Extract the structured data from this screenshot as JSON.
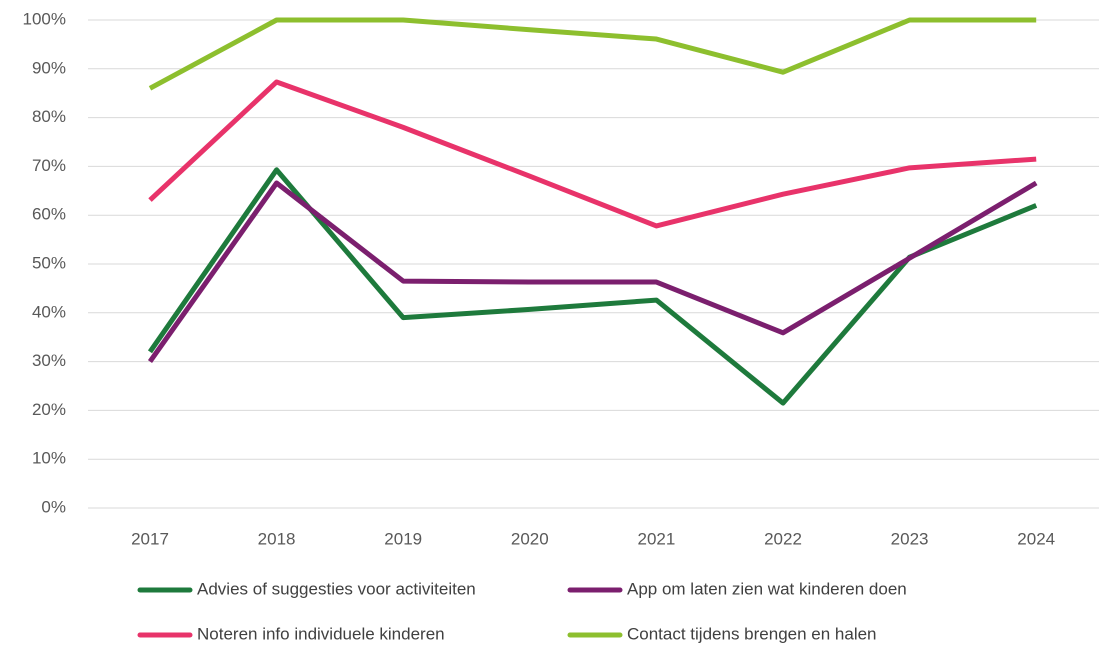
{
  "chart_data": {
    "type": "line",
    "categories": [
      "2017",
      "2018",
      "2019",
      "2020",
      "2021",
      "2022",
      "2023",
      "2024"
    ],
    "series": [
      {
        "name": "Advies of suggesties voor activiteiten",
        "color": "#1e7a3c",
        "values": [
          32,
          69.3,
          39,
          40.7,
          42.6,
          21.5,
          51.4,
          62
        ]
      },
      {
        "name": "App om laten zien wat kinderen doen",
        "color": "#7b1f6e",
        "values": [
          30,
          66.6,
          46.5,
          46.3,
          46.3,
          35.9,
          51.2,
          66.6
        ]
      },
      {
        "name": "Noteren info individuele kinderen",
        "color": "#e8336a",
        "values": [
          63.1,
          87.3,
          78,
          68,
          57.8,
          64.3,
          69.7,
          71.5
        ]
      },
      {
        "name": "Contact tijdens brengen en halen",
        "color": "#8dbf2e",
        "values": [
          86,
          100,
          100,
          98,
          96.1,
          89.3,
          100,
          100
        ]
      }
    ],
    "ylim": [
      0,
      100
    ],
    "yticks": [
      {
        "value": 0,
        "label": "0%"
      },
      {
        "value": 10,
        "label": "10%"
      },
      {
        "value": 20,
        "label": "20%"
      },
      {
        "value": 30,
        "label": "30%"
      },
      {
        "value": 40,
        "label": "40%"
      },
      {
        "value": 50,
        "label": "50%"
      },
      {
        "value": 60,
        "label": "60%"
      },
      {
        "value": 70,
        "label": "70%"
      },
      {
        "value": 80,
        "label": "80%"
      },
      {
        "value": 90,
        "label": "90%"
      },
      {
        "value": 100,
        "label": "100%"
      }
    ],
    "grid": true,
    "legend": "bottom"
  }
}
